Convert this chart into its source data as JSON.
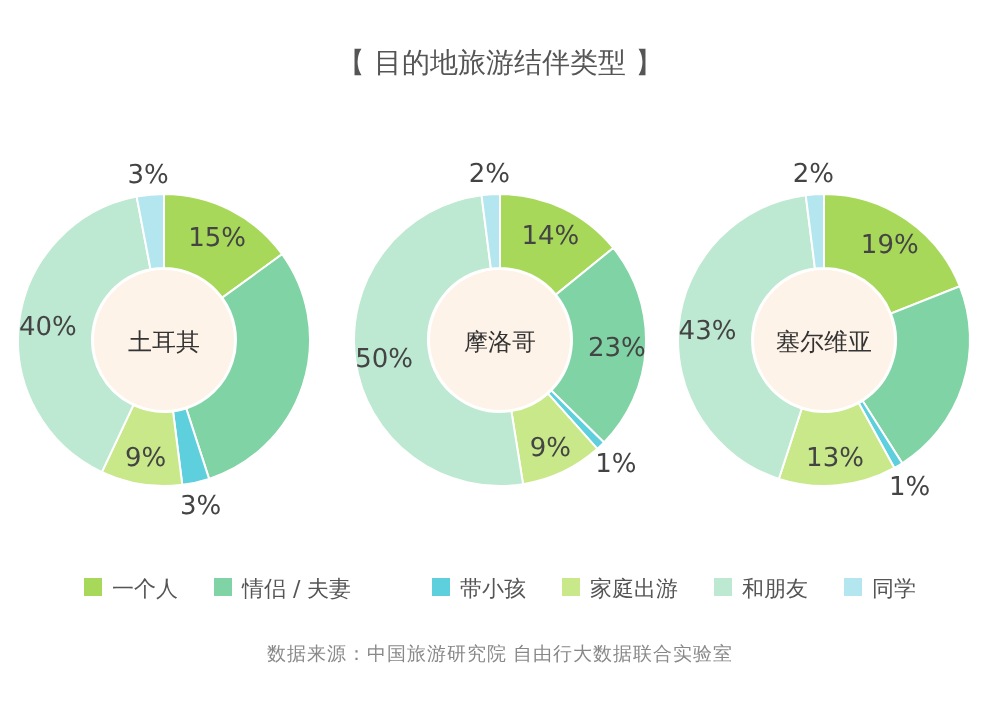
{
  "chart_data": {
    "type": "donut",
    "title": "【 目的地旅游结伴类型 】",
    "categories": [
      "一个人",
      "情侣 / 夫妻",
      "带小孩",
      "家庭出游",
      "和朋友",
      "同学"
    ],
    "colors": [
      "#a8d85a",
      "#7fd3a4",
      "#5ecfdc",
      "#c9e88a",
      "#bde8d2",
      "#b3e6ee"
    ],
    "legend": "bottom",
    "annotations": [
      "数据来源：中国旅游研究院 自由行大数据联合实验室"
    ],
    "series": [
      {
        "name": "土耳其",
        "values": [
          15,
          30,
          3,
          9,
          40,
          3
        ],
        "value_labels": [
          "15%",
          null,
          "3%",
          "9%",
          "40%",
          "3%"
        ]
      },
      {
        "name": "摩洛哥",
        "values": [
          14,
          23,
          1,
          9,
          50,
          2
        ],
        "value_labels": [
          "14%",
          "23%",
          "1%",
          "9%",
          "50%",
          "2%"
        ]
      },
      {
        "name": "塞尔维亚",
        "values": [
          19,
          22,
          1,
          13,
          43,
          2
        ],
        "value_labels": [
          "19%",
          null,
          "1%",
          "13%",
          "43%",
          "2%"
        ]
      }
    ]
  }
}
